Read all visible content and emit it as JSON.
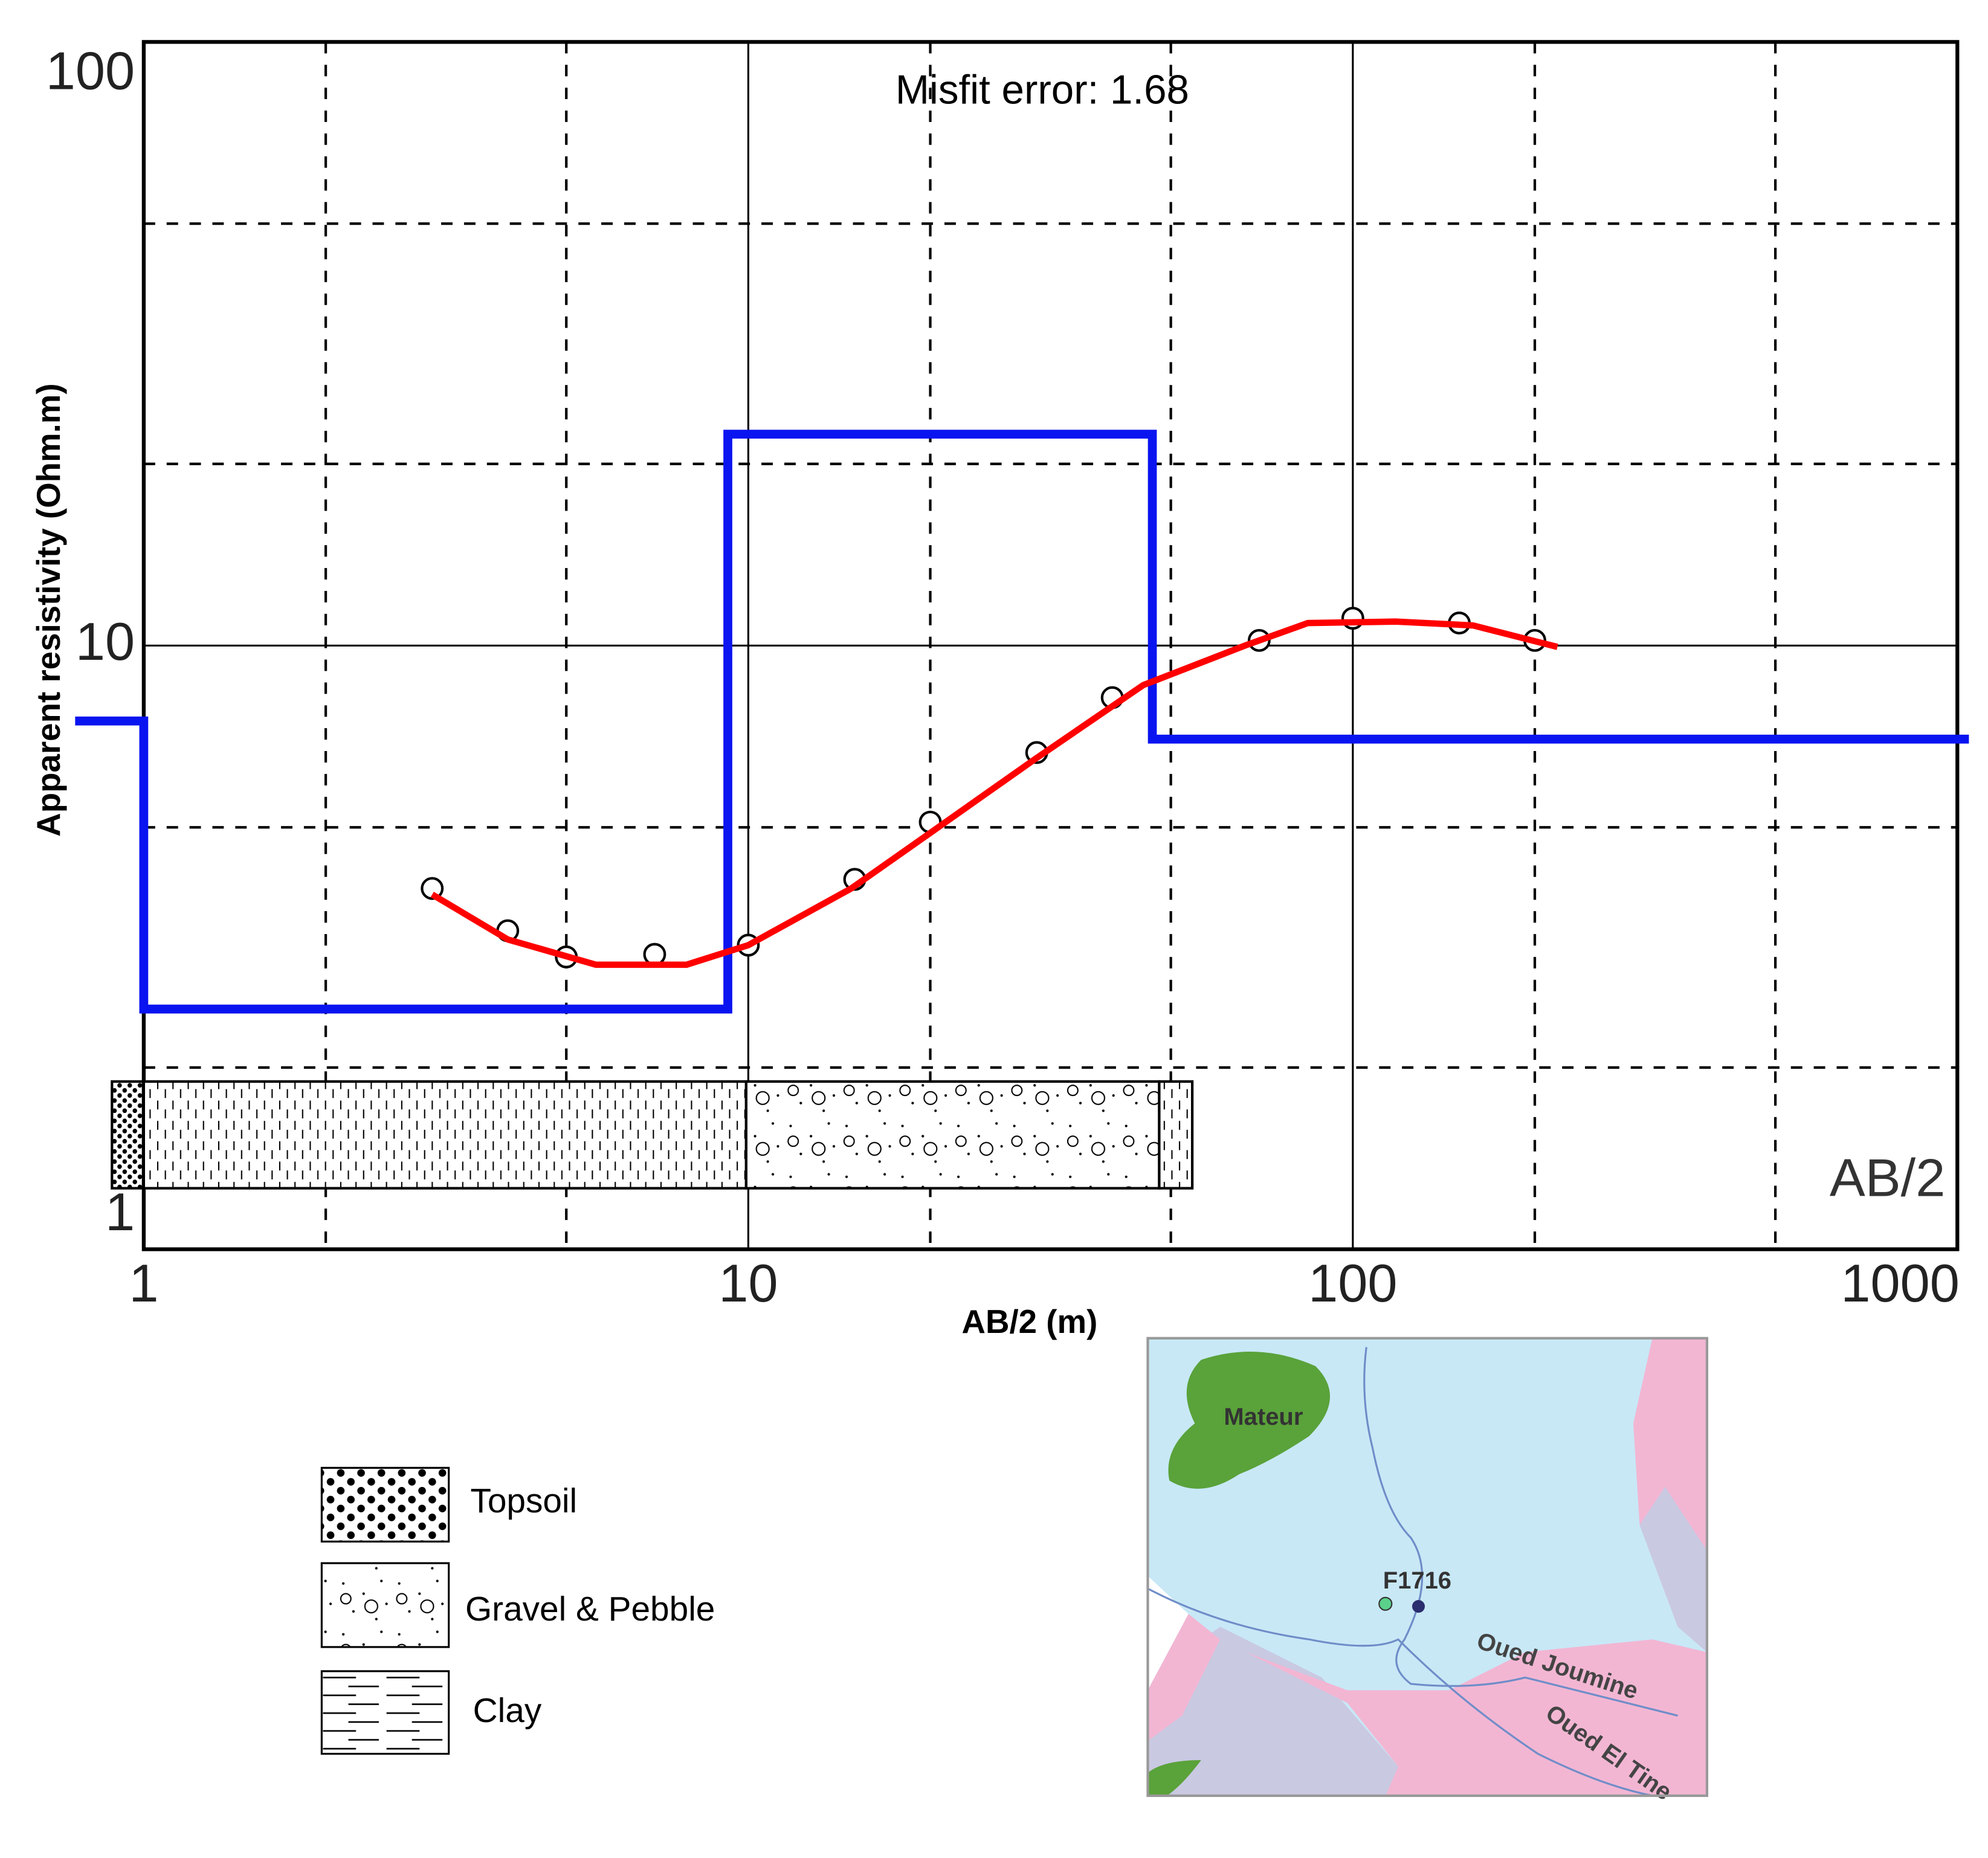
{
  "chart_data": {
    "type": "line",
    "xscale": "log",
    "yscale": "log",
    "grid": true,
    "annotations": [
      "Misfit error: 1.68",
      "AB/2"
    ],
    "xlabel": "AB/2 (m)",
    "ylabel": "Apparent resistivity (Ohm.m)",
    "xlim": [
      1,
      1000
    ],
    "ylim": [
      1,
      100
    ],
    "xticks": [
      1,
      10,
      100,
      1000
    ],
    "yticks": [
      1,
      10,
      100
    ],
    "xgrid_minor": [
      2,
      5,
      20,
      50,
      200,
      500
    ],
    "ygrid_minor": [
      2,
      5,
      20,
      50
    ],
    "series": [
      {
        "style": "line",
        "color": "#0a14f0",
        "x": [
          0.77,
          1,
          1,
          9.25,
          9.25,
          46.6,
          46.6,
          1045
        ],
        "values": [
          7.5,
          7.5,
          2.5,
          2.5,
          22.4,
          22.4,
          7.0,
          7.0
        ]
      },
      {
        "style": "markers",
        "color": "#000000",
        "x": [
          3,
          4,
          5,
          7,
          10,
          15,
          20,
          30,
          40,
          70,
          100,
          150,
          200
        ],
        "values": [
          3.96,
          3.37,
          3.05,
          3.08,
          3.19,
          4.1,
          5.1,
          6.65,
          8.2,
          10.2,
          11.1,
          10.9,
          10.2
        ]
      },
      {
        "style": "thin-line",
        "color": "#ff0000",
        "x": [
          3.0,
          4.0,
          5.6,
          7.9,
          10,
          14.8,
          19.8,
          29.9,
          45.0,
          66.3,
          84.3,
          118,
          158,
          218
        ],
        "values": [
          3.87,
          3.26,
          2.96,
          2.96,
          3.19,
          3.96,
          4.86,
          6.5,
          8.6,
          10.0,
          10.9,
          10.96,
          10.8,
          9.95
        ]
      }
    ]
  },
  "lithology_legend": [
    "Topsoil",
    "Gravel & Pebble",
    "Clay"
  ],
  "map_labels": [
    "Mateur",
    "F1716",
    "Oued Joumine",
    "Oued El Tine"
  ]
}
